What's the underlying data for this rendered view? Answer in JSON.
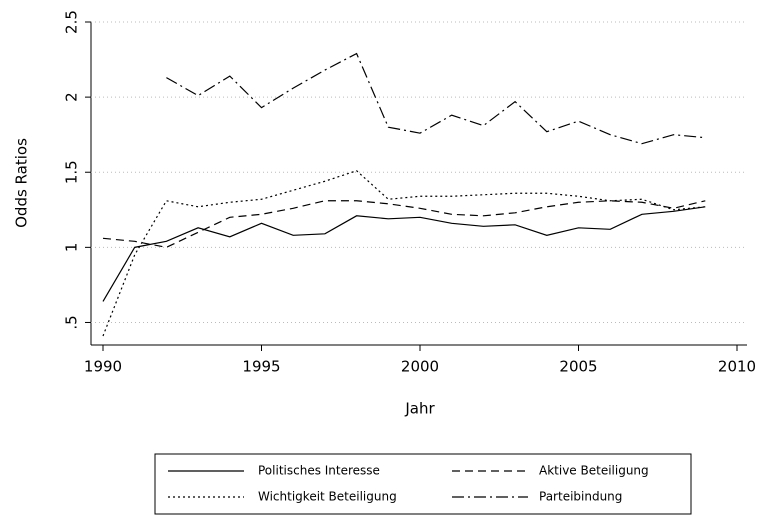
{
  "chart_data": {
    "type": "line",
    "x_label": "Jahr",
    "y_label": "Odds Ratios",
    "x": [
      1990,
      1991,
      1992,
      1993,
      1994,
      1995,
      1996,
      1997,
      1998,
      1999,
      2000,
      2001,
      2002,
      2003,
      2004,
      2005,
      2006,
      2007,
      2008,
      2009
    ],
    "series": [
      {
        "name": "Politisches Interesse",
        "color": "#000000",
        "style": "solid",
        "values": [
          0.64,
          1.0,
          1.04,
          1.13,
          1.07,
          1.16,
          1.08,
          1.09,
          1.21,
          1.19,
          1.2,
          1.16,
          1.14,
          1.15,
          1.08,
          1.13,
          1.12,
          1.22,
          1.24,
          1.27
        ]
      },
      {
        "name": "Aktive Beteiligung",
        "color": "#000000",
        "style": "dashed",
        "values": [
          1.06,
          1.04,
          1.0,
          1.1,
          1.2,
          1.22,
          1.26,
          1.31,
          1.31,
          1.29,
          1.26,
          1.22,
          1.21,
          1.23,
          1.27,
          1.3,
          1.31,
          1.3,
          1.26,
          1.31
        ]
      },
      {
        "name": "Wichtigkeit Beteiligung",
        "color": "#000000",
        "style": "dotted",
        "values": [
          0.41,
          0.95,
          1.31,
          1.27,
          1.3,
          1.32,
          1.38,
          1.44,
          1.51,
          1.32,
          1.34,
          1.34,
          1.35,
          1.36,
          1.36,
          1.34,
          1.31,
          1.32,
          1.25,
          1.27
        ]
      },
      {
        "name": "Parteibindung",
        "color": "#000000",
        "style": "dashdot",
        "values": [
          null,
          null,
          2.13,
          2.01,
          2.14,
          1.93,
          2.06,
          2.18,
          2.29,
          1.8,
          1.76,
          1.88,
          1.81,
          1.97,
          1.77,
          1.84,
          1.75,
          1.69,
          1.75,
          1.73
        ]
      }
    ],
    "xlim": [
      1990,
      2010
    ],
    "xticks": [
      1990,
      1995,
      2000,
      2005,
      2010
    ],
    "ylim": [
      0.35,
      2.5
    ],
    "yticks": [
      {
        "value": 0.5,
        "label": ".5"
      },
      1,
      1.5,
      2,
      2.5
    ],
    "grid": true,
    "legend": "bottom"
  }
}
